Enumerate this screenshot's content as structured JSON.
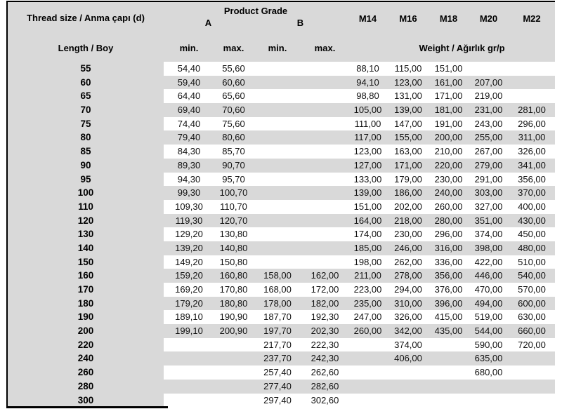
{
  "table": {
    "header": {
      "thread_size_label": "Thread size / Anma çapı (d)",
      "product_grade_label": "Product Grade",
      "grade_a": "A",
      "grade_b": "B",
      "size_columns": [
        "M14",
        "M16",
        "M18",
        "M20",
        "M22"
      ],
      "length_label": "Length / Boy",
      "min_label": "min.",
      "max_label": "max.",
      "weight_label": "Weight / Ağırlık gr/p"
    },
    "columns": [
      "length",
      "a_min",
      "a_max",
      "b_min",
      "b_max",
      "M14",
      "M16",
      "M18",
      "M20",
      "M22"
    ],
    "rows": [
      [
        "55",
        "54,40",
        "55,60",
        "",
        "",
        "88,10",
        "115,00",
        "151,00",
        "",
        ""
      ],
      [
        "60",
        "59,40",
        "60,60",
        "",
        "",
        "94,10",
        "123,00",
        "161,00",
        "207,00",
        ""
      ],
      [
        "65",
        "64,40",
        "65,60",
        "",
        "",
        "98,80",
        "131,00",
        "171,00",
        "219,00",
        ""
      ],
      [
        "70",
        "69,40",
        "70,60",
        "",
        "",
        "105,00",
        "139,00",
        "181,00",
        "231,00",
        "281,00"
      ],
      [
        "75",
        "74,40",
        "75,60",
        "",
        "",
        "111,00",
        "147,00",
        "191,00",
        "243,00",
        "296,00"
      ],
      [
        "80",
        "79,40",
        "80,60",
        "",
        "",
        "117,00",
        "155,00",
        "200,00",
        "255,00",
        "311,00"
      ],
      [
        "85",
        "84,30",
        "85,70",
        "",
        "",
        "123,00",
        "163,00",
        "210,00",
        "267,00",
        "326,00"
      ],
      [
        "90",
        "89,30",
        "90,70",
        "",
        "",
        "127,00",
        "171,00",
        "220,00",
        "279,00",
        "341,00"
      ],
      [
        "95",
        "94,30",
        "95,70",
        "",
        "",
        "133,00",
        "179,00",
        "230,00",
        "291,00",
        "356,00"
      ],
      [
        "100",
        "99,30",
        "100,70",
        "",
        "",
        "139,00",
        "186,00",
        "240,00",
        "303,00",
        "370,00"
      ],
      [
        "110",
        "109,30",
        "110,70",
        "",
        "",
        "151,00",
        "202,00",
        "260,00",
        "327,00",
        "400,00"
      ],
      [
        "120",
        "119,30",
        "120,70",
        "",
        "",
        "164,00",
        "218,00",
        "280,00",
        "351,00",
        "430,00"
      ],
      [
        "130",
        "129,20",
        "130,80",
        "",
        "",
        "174,00",
        "230,00",
        "296,00",
        "374,00",
        "450,00"
      ],
      [
        "140",
        "139,20",
        "140,80",
        "",
        "",
        "185,00",
        "246,00",
        "316,00",
        "398,00",
        "480,00"
      ],
      [
        "150",
        "149,20",
        "150,80",
        "",
        "",
        "198,00",
        "262,00",
        "336,00",
        "422,00",
        "510,00"
      ],
      [
        "160",
        "159,20",
        "160,80",
        "158,00",
        "162,00",
        "211,00",
        "278,00",
        "356,00",
        "446,00",
        "540,00"
      ],
      [
        "170",
        "169,20",
        "170,80",
        "168,00",
        "172,00",
        "223,00",
        "294,00",
        "376,00",
        "470,00",
        "570,00"
      ],
      [
        "180",
        "179,20",
        "180,80",
        "178,00",
        "182,00",
        "235,00",
        "310,00",
        "396,00",
        "494,00",
        "600,00"
      ],
      [
        "190",
        "189,10",
        "190,90",
        "187,70",
        "192,30",
        "247,00",
        "326,00",
        "415,00",
        "519,00",
        "630,00"
      ],
      [
        "200",
        "199,10",
        "200,90",
        "197,70",
        "202,30",
        "260,00",
        "342,00",
        "435,00",
        "544,00",
        "660,00"
      ],
      [
        "220",
        "",
        "",
        "217,70",
        "222,30",
        "",
        "374,00",
        "",
        "590,00",
        "720,00"
      ],
      [
        "240",
        "",
        "",
        "237,70",
        "242,30",
        "",
        "406,00",
        "",
        "635,00",
        ""
      ],
      [
        "260",
        "",
        "",
        "257,40",
        "262,60",
        "",
        "",
        "",
        "680,00",
        ""
      ],
      [
        "280",
        "",
        "",
        "277,40",
        "282,60",
        "",
        "",
        "",
        "",
        ""
      ],
      [
        "300",
        "",
        "",
        "297,40",
        "302,60",
        "",
        "",
        "",
        "",
        ""
      ]
    ],
    "colors": {
      "header_bg": "#d9d9d9",
      "stripe": "#d9d9d9",
      "row_alt": "#ffffff",
      "border": "#000000",
      "text": "#000000"
    }
  }
}
